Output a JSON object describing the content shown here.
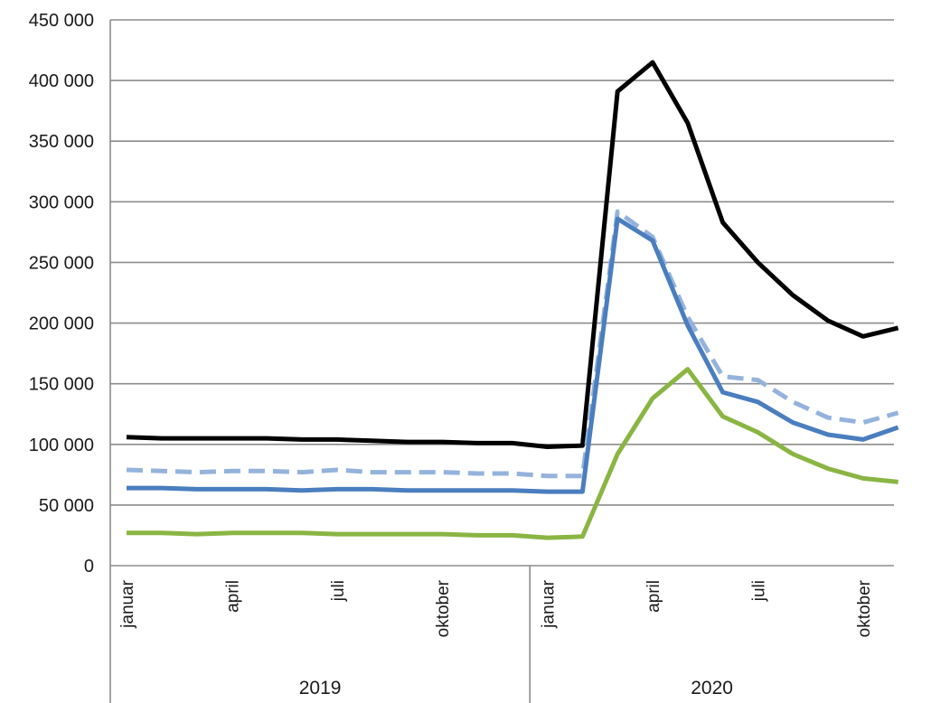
{
  "chart_data": {
    "type": "line",
    "title": "",
    "xlabel": "",
    "ylabel": "",
    "ylim": [
      0,
      450000
    ],
    "y_ticks": [
      0,
      50000,
      100000,
      150000,
      200000,
      250000,
      300000,
      350000,
      400000,
      450000
    ],
    "y_tick_labels": [
      "0",
      "50 000",
      "100 000",
      "150 000",
      "200 000",
      "250 000",
      "300 000",
      "350 000",
      "400 000",
      "450 000"
    ],
    "grid": true,
    "legend": "none",
    "x": [
      "2019-01",
      "2019-02",
      "2019-03",
      "2019-04",
      "2019-05",
      "2019-06",
      "2019-07",
      "2019-08",
      "2019-09",
      "2019-10",
      "2019-11",
      "2019-12",
      "2020-01",
      "2020-02",
      "2020-03",
      "2020-04",
      "2020-05",
      "2020-06",
      "2020-07",
      "2020-08",
      "2020-09",
      "2020-10",
      "2020-11"
    ],
    "x_tick_labels": [
      {
        "x": "2019-01",
        "label": "januar"
      },
      {
        "x": "2019-04",
        "label": "april"
      },
      {
        "x": "2019-07",
        "label": "juli"
      },
      {
        "x": "2019-10",
        "label": "oktober"
      },
      {
        "x": "2020-01",
        "label": "januar"
      },
      {
        "x": "2020-04",
        "label": "april"
      },
      {
        "x": "2020-07",
        "label": "juli"
      },
      {
        "x": "2020-10",
        "label": "oktober"
      }
    ],
    "groups": [
      {
        "label": "2019",
        "from": "2019-01",
        "to": "2019-12"
      },
      {
        "label": "2020",
        "from": "2020-01",
        "to": "2020-11"
      }
    ],
    "series": [
      {
        "color": "#000000",
        "style": "solid",
        "values": [
          106000,
          105000,
          105000,
          105000,
          105000,
          104000,
          104000,
          103000,
          102000,
          102000,
          101000,
          101000,
          98000,
          99000,
          391000,
          415000,
          365000,
          283000,
          250000,
          223000,
          202000,
          189000,
          196000
        ]
      },
      {
        "color": "#94b3dc",
        "style": "dashed",
        "values": [
          79000,
          78000,
          77000,
          78000,
          78000,
          77000,
          79000,
          77000,
          77000,
          77000,
          76000,
          76000,
          74000,
          74000,
          292000,
          271000,
          205000,
          156000,
          153000,
          135000,
          122000,
          118000,
          126000
        ]
      },
      {
        "color": "#4a7ebf",
        "style": "solid",
        "values": [
          64000,
          64000,
          63000,
          63000,
          63000,
          62000,
          63000,
          63000,
          62000,
          62000,
          62000,
          62000,
          61000,
          61000,
          286000,
          268000,
          198000,
          143000,
          135000,
          118000,
          108000,
          104000,
          114000
        ]
      },
      {
        "color": "#8ab543",
        "style": "solid",
        "values": [
          27000,
          27000,
          26000,
          27000,
          27000,
          27000,
          26000,
          26000,
          26000,
          26000,
          25000,
          25000,
          23000,
          24000,
          92000,
          138000,
          162000,
          123000,
          110000,
          92000,
          80000,
          72000,
          69000
        ]
      }
    ]
  }
}
